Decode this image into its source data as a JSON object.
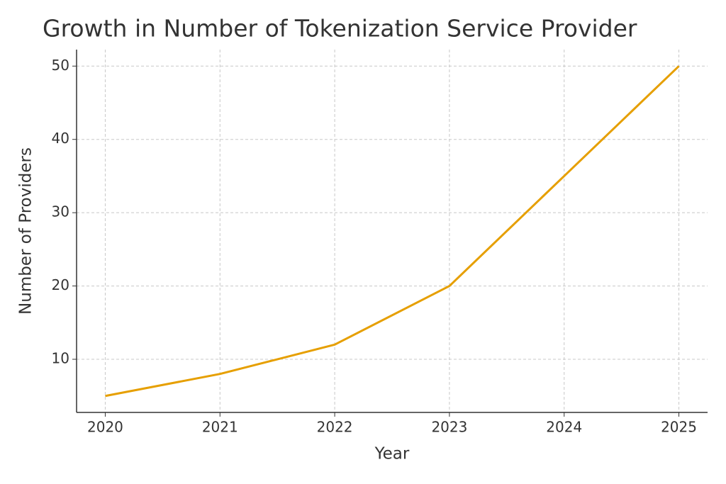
{
  "chart_data": {
    "type": "line",
    "title": "Growth in Number of Tokenization Service Provider",
    "x_label": "Year",
    "y_label": "Number of Providers",
    "x": [
      2020,
      2021,
      2022,
      2023,
      2024,
      2025
    ],
    "series": [
      {
        "name": "Number of Providers",
        "color": "#e69f00",
        "values": [
          5,
          8,
          12,
          20,
          35,
          50
        ]
      }
    ],
    "xlim": [
      2019.75,
      2025.25
    ],
    "xticks": [
      2020,
      2021,
      2022,
      2023,
      2024,
      2025
    ],
    "ylim": [
      2.75,
      52.25
    ],
    "yticks": [
      10,
      20,
      30,
      40,
      50
    ],
    "grid": true
  }
}
